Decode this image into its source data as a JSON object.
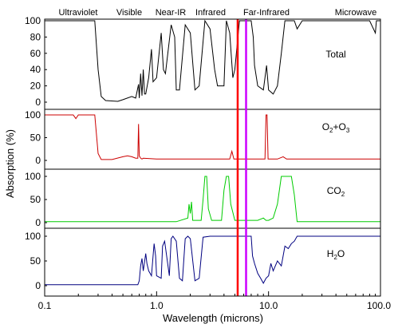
{
  "chart_data": {
    "type": "line",
    "xlabel": "Wavelength (microns)",
    "ylabel": "Absorption (%)",
    "xscale": "log",
    "xlim": [
      0.1,
      100
    ],
    "x_ticks": [
      "0.1",
      "1.0",
      "10.0",
      "100.0"
    ],
    "bands": [
      "Ultraviolet",
      "Visible",
      "Near-IR",
      "Infrared",
      "Far-Infrared",
      "Microwave"
    ],
    "vertical_lines": [
      {
        "x": 5.3,
        "color": "#ff0000"
      },
      {
        "x": 6.3,
        "color": "#cc00ff"
      }
    ],
    "panels": [
      {
        "label": "Total",
        "color": "#000000",
        "y_ticks": [
          "100",
          "80",
          "60",
          "40",
          "20",
          "0"
        ],
        "ylim": [
          0,
          100
        ],
        "points": [
          [
            0.1,
            100
          ],
          [
            0.28,
            100
          ],
          [
            0.3,
            40
          ],
          [
            0.32,
            7
          ],
          [
            0.35,
            2
          ],
          [
            0.45,
            1
          ],
          [
            0.5,
            3
          ],
          [
            0.6,
            7
          ],
          [
            0.65,
            5
          ],
          [
            0.69,
            22
          ],
          [
            0.7,
            5
          ],
          [
            0.72,
            35
          ],
          [
            0.74,
            8
          ],
          [
            0.76,
            40
          ],
          [
            0.78,
            10
          ],
          [
            0.8,
            10
          ],
          [
            0.85,
            30
          ],
          [
            0.9,
            65
          ],
          [
            0.93,
            25
          ],
          [
            1.0,
            30
          ],
          [
            1.1,
            85
          ],
          [
            1.15,
            40
          ],
          [
            1.2,
            35
          ],
          [
            1.35,
            95
          ],
          [
            1.45,
            80
          ],
          [
            1.5,
            15
          ],
          [
            1.6,
            15
          ],
          [
            1.8,
            95
          ],
          [
            2.0,
            85
          ],
          [
            2.2,
            15
          ],
          [
            2.4,
            20
          ],
          [
            2.7,
            100
          ],
          [
            3.0,
            90
          ],
          [
            3.3,
            40
          ],
          [
            3.5,
            20
          ],
          [
            4.0,
            20
          ],
          [
            4.2,
            100
          ],
          [
            4.5,
            85
          ],
          [
            4.8,
            30
          ],
          [
            5.0,
            40
          ],
          [
            5.5,
            100
          ],
          [
            7.0,
            100
          ],
          [
            7.3,
            80
          ],
          [
            7.5,
            45
          ],
          [
            8.0,
            20
          ],
          [
            9.0,
            15
          ],
          [
            9.6,
            45
          ],
          [
            10.0,
            15
          ],
          [
            11.0,
            10
          ],
          [
            12.0,
            20
          ],
          [
            13.0,
            60
          ],
          [
            14.0,
            100
          ],
          [
            17.0,
            100
          ],
          [
            18.0,
            90
          ],
          [
            20.0,
            100
          ],
          [
            25.0,
            100
          ],
          [
            30.0,
            100
          ],
          [
            50.0,
            100
          ],
          [
            80.0,
            100
          ],
          [
            90.0,
            85
          ],
          [
            92.0,
            100
          ],
          [
            100,
            100
          ]
        ]
      },
      {
        "label": "O2+O3",
        "color": "#cc0000",
        "y_ticks": [
          "100",
          "50",
          "0"
        ],
        "ylim": [
          0,
          100
        ],
        "points": [
          [
            0.1,
            100
          ],
          [
            0.18,
            100
          ],
          [
            0.19,
            92
          ],
          [
            0.2,
            100
          ],
          [
            0.28,
            100
          ],
          [
            0.3,
            15
          ],
          [
            0.32,
            2
          ],
          [
            0.4,
            2
          ],
          [
            0.5,
            8
          ],
          [
            0.55,
            10
          ],
          [
            0.6,
            8
          ],
          [
            0.65,
            5
          ],
          [
            0.68,
            5
          ],
          [
            0.69,
            80
          ],
          [
            0.7,
            10
          ],
          [
            0.72,
            5
          ],
          [
            0.74,
            3
          ],
          [
            0.76,
            5
          ],
          [
            1.0,
            3
          ],
          [
            3.0,
            3
          ],
          [
            4.5,
            3
          ],
          [
            4.7,
            20
          ],
          [
            4.9,
            3
          ],
          [
            5.5,
            3
          ],
          [
            9.3,
            3
          ],
          [
            9.5,
            100
          ],
          [
            9.7,
            100
          ],
          [
            9.9,
            3
          ],
          [
            12.0,
            3
          ],
          [
            13.5,
            8
          ],
          [
            14.5,
            3
          ],
          [
            18.0,
            3
          ],
          [
            100,
            3
          ]
        ]
      },
      {
        "label": "CO2",
        "color": "#00cc00",
        "y_ticks": [
          "100",
          "50",
          "0"
        ],
        "ylim": [
          0,
          100
        ],
        "points": [
          [
            0.1,
            2
          ],
          [
            1.5,
            2
          ],
          [
            1.9,
            10
          ],
          [
            1.95,
            40
          ],
          [
            2.0,
            20
          ],
          [
            2.05,
            45
          ],
          [
            2.1,
            5
          ],
          [
            2.5,
            5
          ],
          [
            2.6,
            50
          ],
          [
            2.7,
            100
          ],
          [
            2.8,
            100
          ],
          [
            2.9,
            30
          ],
          [
            3.1,
            5
          ],
          [
            3.8,
            5
          ],
          [
            4.0,
            70
          ],
          [
            4.2,
            100
          ],
          [
            4.4,
            100
          ],
          [
            4.6,
            40
          ],
          [
            5.0,
            5
          ],
          [
            8.0,
            5
          ],
          [
            9.0,
            10
          ],
          [
            9.5,
            5
          ],
          [
            10.0,
            5
          ],
          [
            11.0,
            10
          ],
          [
            12.0,
            40
          ],
          [
            13.0,
            100
          ],
          [
            15.0,
            100
          ],
          [
            16.0,
            100
          ],
          [
            17.0,
            60
          ],
          [
            18.0,
            2
          ],
          [
            100,
            2
          ]
        ]
      },
      {
        "label": "H2O",
        "color": "#000080",
        "y_ticks": [
          "100",
          "50",
          "0"
        ],
        "ylim": [
          0,
          100
        ],
        "points": [
          [
            0.1,
            2
          ],
          [
            0.68,
            2
          ],
          [
            0.7,
            10
          ],
          [
            0.72,
            40
          ],
          [
            0.74,
            55
          ],
          [
            0.76,
            30
          ],
          [
            0.8,
            65
          ],
          [
            0.82,
            45
          ],
          [
            0.85,
            30
          ],
          [
            0.9,
            20
          ],
          [
            0.93,
            60
          ],
          [
            0.95,
            85
          ],
          [
            0.98,
            60
          ],
          [
            1.0,
            20
          ],
          [
            1.1,
            15
          ],
          [
            1.13,
            80
          ],
          [
            1.18,
            90
          ],
          [
            1.3,
            20
          ],
          [
            1.35,
            95
          ],
          [
            1.4,
            100
          ],
          [
            1.5,
            90
          ],
          [
            1.6,
            15
          ],
          [
            1.7,
            10
          ],
          [
            1.8,
            95
          ],
          [
            1.9,
            100
          ],
          [
            2.0,
            95
          ],
          [
            2.2,
            10
          ],
          [
            2.4,
            15
          ],
          [
            2.6,
            98
          ],
          [
            3.0,
            100
          ],
          [
            3.5,
            100
          ],
          [
            4.0,
            100
          ],
          [
            4.5,
            100
          ],
          [
            5.0,
            100
          ],
          [
            7.0,
            100
          ],
          [
            7.2,
            60
          ],
          [
            7.5,
            45
          ],
          [
            8.0,
            25
          ],
          [
            8.5,
            15
          ],
          [
            9.0,
            5
          ],
          [
            9.5,
            15
          ],
          [
            10.0,
            20
          ],
          [
            10.5,
            45
          ],
          [
            11.0,
            30
          ],
          [
            12.0,
            50
          ],
          [
            13.0,
            40
          ],
          [
            14.0,
            80
          ],
          [
            15.0,
            75
          ],
          [
            16.0,
            85
          ],
          [
            17.0,
            90
          ],
          [
            18.0,
            100
          ],
          [
            20.0,
            100
          ],
          [
            30.0,
            100
          ],
          [
            50.0,
            100
          ],
          [
            100,
            100
          ]
        ]
      }
    ]
  }
}
